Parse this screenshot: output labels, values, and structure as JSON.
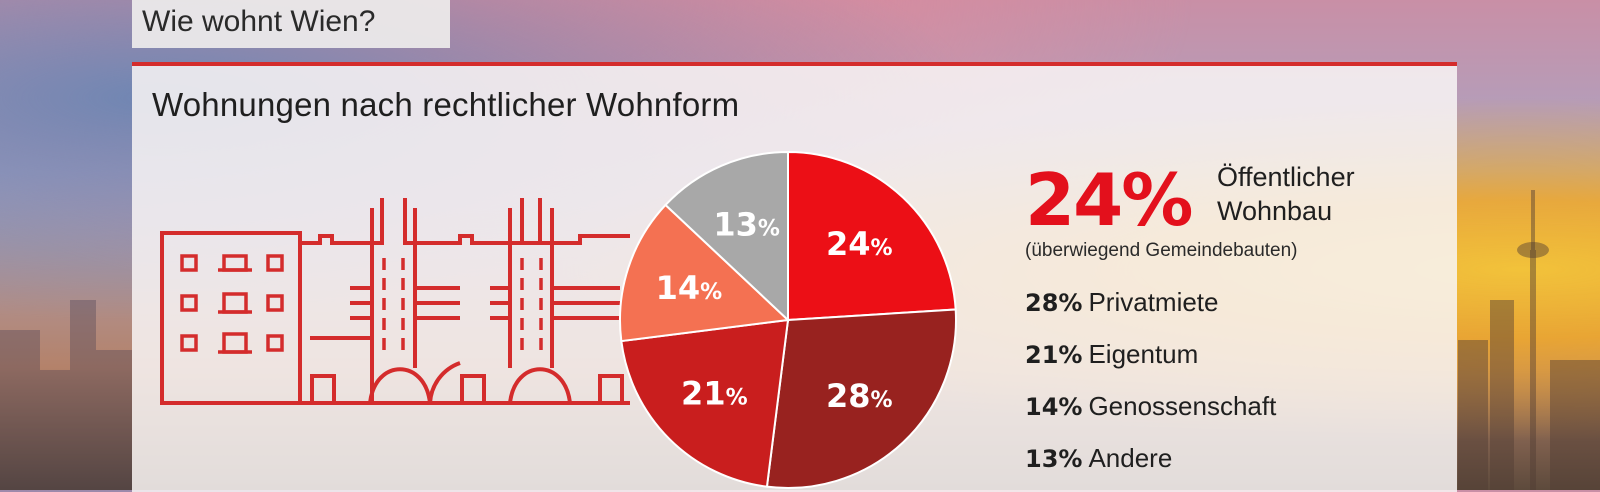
{
  "header": {
    "tag": "Wie wohnt Wien?",
    "subtitle": "Wohnungen nach rechtlicher Wohnform"
  },
  "colors": {
    "accent": "#d42c2c",
    "highlight": "#e3101c"
  },
  "chart_data": {
    "type": "pie",
    "slices": [
      {
        "label": "Öffentlicher Wohnbau",
        "value": 24,
        "display": "24",
        "color": "#ec0f16"
      },
      {
        "label": "Privatmiete",
        "value": 28,
        "display": "28",
        "color": "#98221f"
      },
      {
        "label": "Eigentum",
        "value": 21,
        "display": "21",
        "color": "#c91e1e"
      },
      {
        "label": "Genossenschaft",
        "value": 14,
        "display": "14",
        "color": "#f47152"
      },
      {
        "label": "Andere",
        "value": 13,
        "display": "13",
        "color": "#a8a8a8"
      }
    ],
    "percent_sign": "%"
  },
  "legend": {
    "highlight": {
      "value": "24%",
      "name_line1": "Öffentlicher",
      "name_line2": "Wohnbau",
      "note": "(überwiegend Gemeindebauten)"
    },
    "rows": [
      {
        "value": "28%",
        "name": "Privatmiete"
      },
      {
        "value": "21%",
        "name": "Eigentum"
      },
      {
        "value": "14%",
        "name": "Genossenschaft"
      },
      {
        "value": "13%",
        "name": "Andere"
      }
    ]
  }
}
